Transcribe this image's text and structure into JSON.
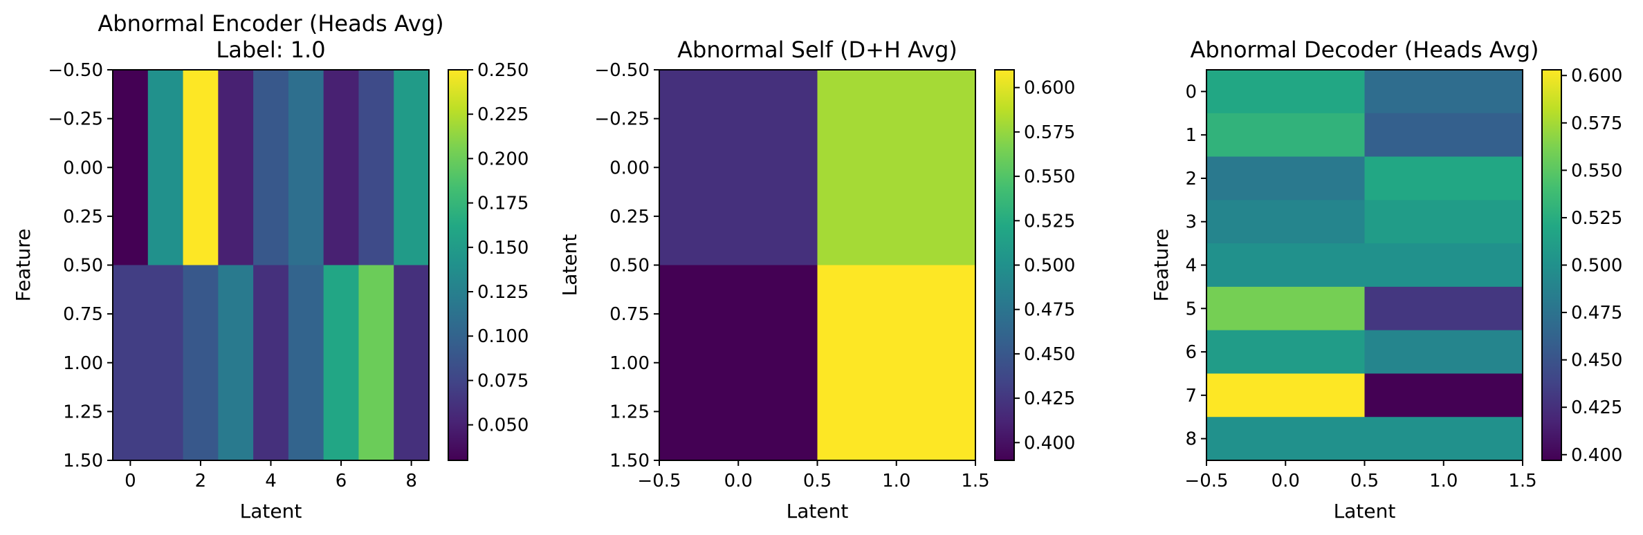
{
  "chart_data": [
    {
      "type": "heatmap",
      "title": "Abnormal Encoder (Heads Avg)",
      "subtitle": "Label: 1.0",
      "xlabel": "Latent",
      "ylabel": "Feature",
      "xlim": [
        -0.5,
        8.5
      ],
      "ylim": [
        1.5,
        -0.5
      ],
      "xticks": [
        0,
        2,
        4,
        6,
        8
      ],
      "xtick_labels": [
        "0",
        "2",
        "4",
        "6",
        "8"
      ],
      "yticks": [
        -0.5,
        -0.25,
        0.0,
        0.25,
        0.5,
        0.75,
        1.0,
        1.25,
        1.5
      ],
      "ytick_labels": [
        "−0.50",
        "−0.25",
        "0.00",
        "0.25",
        "0.50",
        "0.75",
        "1.00",
        "1.25",
        "1.50"
      ],
      "colormap": "viridis",
      "vmin": 0.03,
      "vmax": 0.25,
      "colorbar_ticks": [
        0.05,
        0.075,
        0.1,
        0.125,
        0.15,
        0.175,
        0.2,
        0.225,
        0.25
      ],
      "colorbar_tick_labels": [
        "0.050",
        "0.075",
        "0.100",
        "0.125",
        "0.150",
        "0.175",
        "0.200",
        "0.225",
        "0.250"
      ],
      "x": [
        0,
        1,
        2,
        3,
        4,
        5,
        6,
        7,
        8
      ],
      "y": [
        0,
        1
      ],
      "values": [
        [
          0.03,
          0.14,
          0.25,
          0.05,
          0.09,
          0.11,
          0.05,
          0.08,
          0.15
        ],
        [
          0.07,
          0.07,
          0.09,
          0.12,
          0.06,
          0.1,
          0.16,
          0.2,
          0.06
        ]
      ]
    },
    {
      "type": "heatmap",
      "title": "Abnormal Self (D+H Avg)",
      "xlabel": "Latent",
      "ylabel": "Latent",
      "xlim": [
        -0.5,
        1.5
      ],
      "ylim": [
        1.5,
        -0.5
      ],
      "xticks": [
        -0.5,
        0.0,
        0.5,
        1.0,
        1.5
      ],
      "xtick_labels": [
        "−0.5",
        "0.0",
        "0.5",
        "1.0",
        "1.5"
      ],
      "yticks": [
        -0.5,
        -0.25,
        0.0,
        0.25,
        0.5,
        0.75,
        1.0,
        1.25,
        1.5
      ],
      "ytick_labels": [
        "−0.50",
        "−0.25",
        "0.00",
        "0.25",
        "0.50",
        "0.75",
        "1.00",
        "1.25",
        "1.50"
      ],
      "colormap": "viridis",
      "vmin": 0.39,
      "vmax": 0.61,
      "colorbar_ticks": [
        0.4,
        0.425,
        0.45,
        0.475,
        0.5,
        0.525,
        0.55,
        0.575,
        0.6
      ],
      "colorbar_tick_labels": [
        "0.400",
        "0.425",
        "0.450",
        "0.475",
        "0.500",
        "0.525",
        "0.550",
        "0.575",
        "0.600"
      ],
      "x": [
        0,
        1
      ],
      "y": [
        0,
        1
      ],
      "values": [
        [
          0.42,
          0.58
        ],
        [
          0.39,
          0.61
        ]
      ]
    },
    {
      "type": "heatmap",
      "title": "Abnormal Decoder (Heads Avg)",
      "xlabel": "Latent",
      "ylabel": "Feature",
      "xlim": [
        -0.5,
        1.5
      ],
      "ylim": [
        8.5,
        -0.5
      ],
      "xticks": [
        -0.5,
        0.0,
        0.5,
        1.0,
        1.5
      ],
      "xtick_labels": [
        "−0.5",
        "0.0",
        "0.5",
        "1.0",
        "1.5"
      ],
      "yticks": [
        0,
        1,
        2,
        3,
        4,
        5,
        6,
        7,
        8
      ],
      "ytick_labels": [
        "0",
        "1",
        "2",
        "3",
        "4",
        "5",
        "6",
        "7",
        "8"
      ],
      "colormap": "viridis",
      "vmin": 0.397,
      "vmax": 0.603,
      "colorbar_ticks": [
        0.4,
        0.425,
        0.45,
        0.475,
        0.5,
        0.525,
        0.55,
        0.575,
        0.6
      ],
      "colorbar_tick_labels": [
        "0.400",
        "0.425",
        "0.450",
        "0.475",
        "0.500",
        "0.525",
        "0.550",
        "0.575",
        "0.600"
      ],
      "x": [
        0,
        1
      ],
      "y": [
        0,
        1,
        2,
        3,
        4,
        5,
        6,
        7,
        8
      ],
      "values": [
        [
          0.52,
          0.47
        ],
        [
          0.53,
          0.46
        ],
        [
          0.48,
          0.52
        ],
        [
          0.49,
          0.51
        ],
        [
          0.5,
          0.5
        ],
        [
          0.56,
          0.43
        ],
        [
          0.51,
          0.49
        ],
        [
          0.603,
          0.397
        ],
        [
          0.5,
          0.5
        ]
      ]
    }
  ]
}
